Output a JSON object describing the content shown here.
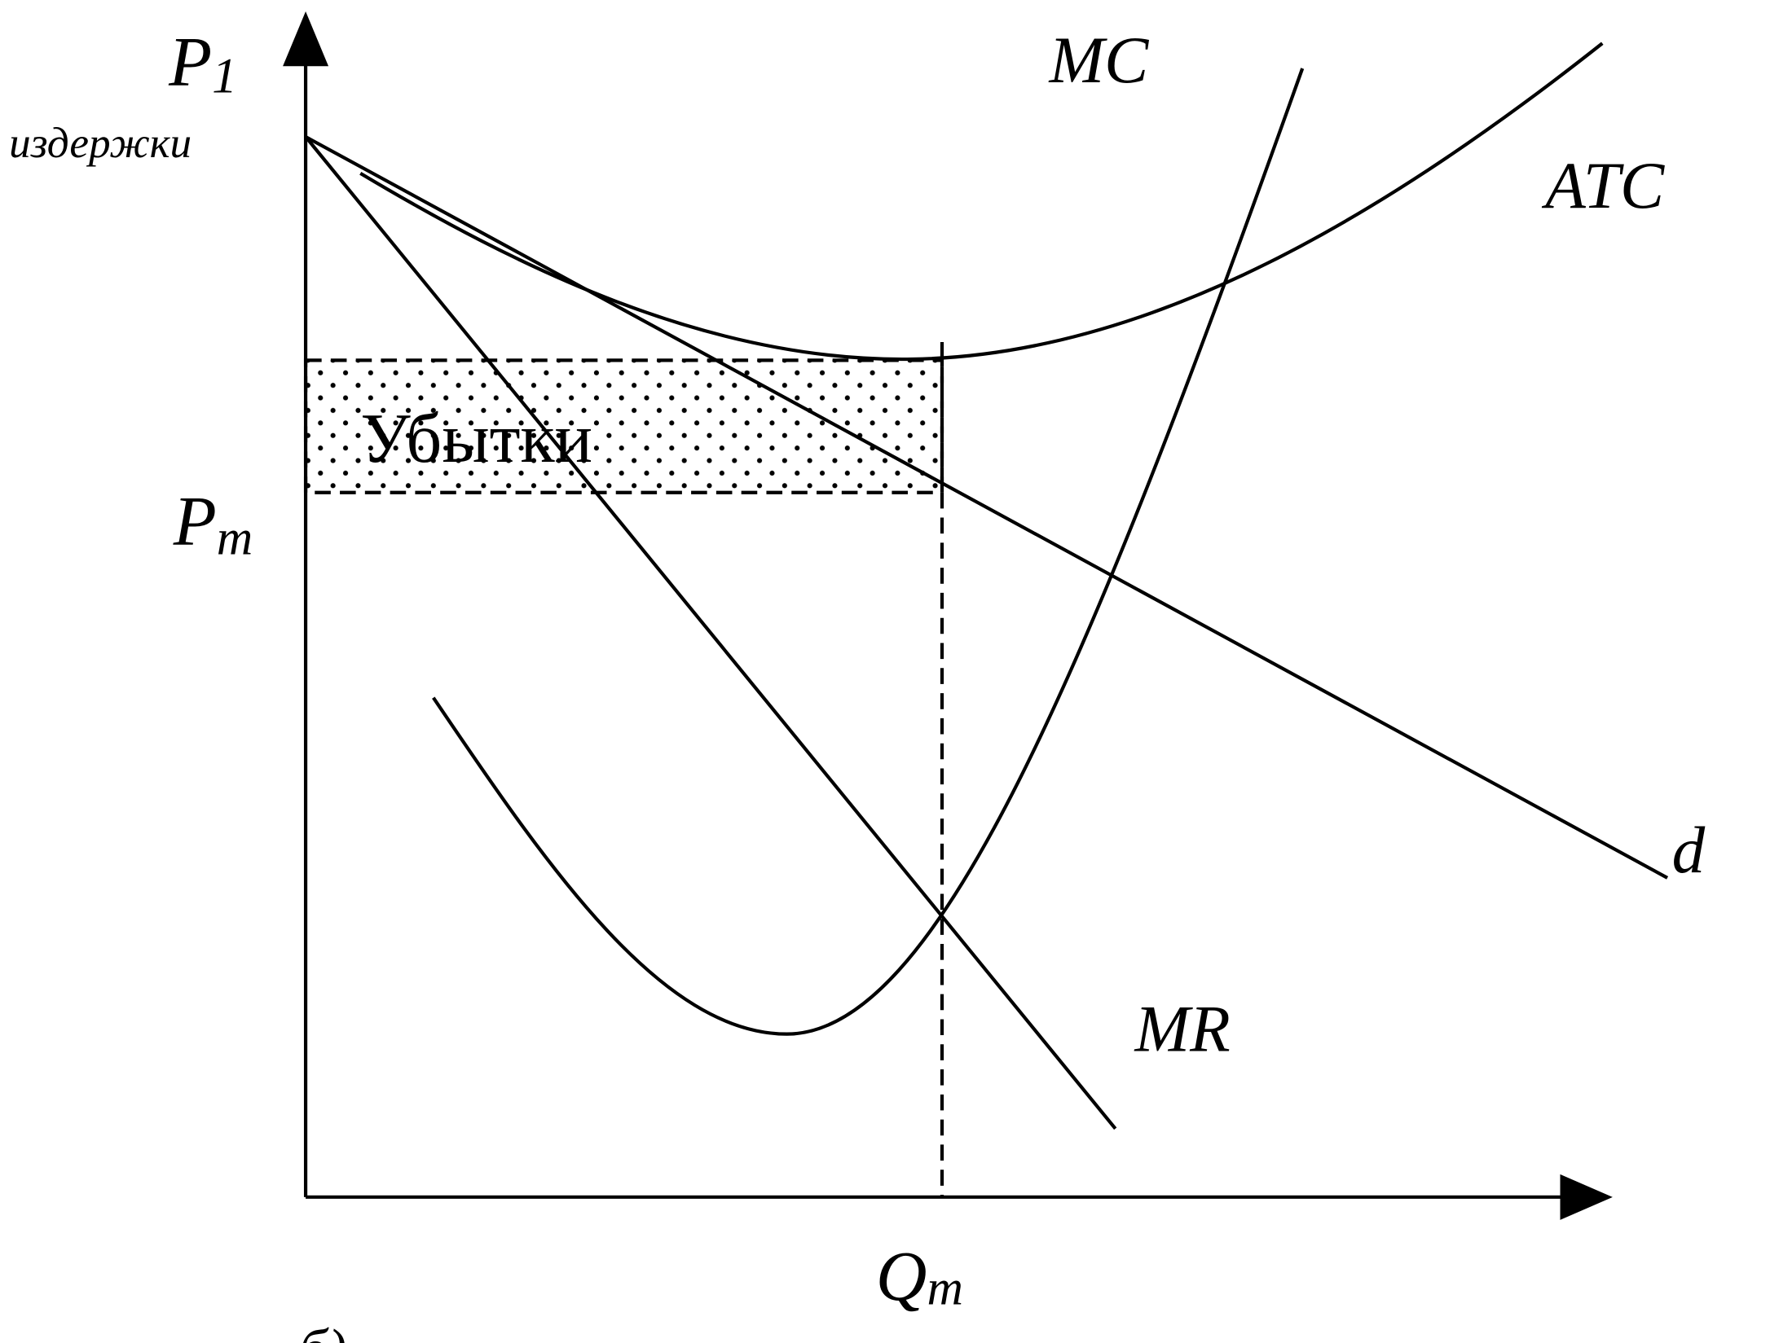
{
  "axis_labels": {
    "p1": {
      "letter": "P",
      "subscript": "1"
    },
    "y_caption": "издержки",
    "pm": {
      "letter": "P",
      "subscript": "m"
    },
    "qm": {
      "letter": "Q",
      "subscript": "m"
    }
  },
  "curves": {
    "mc": "MC",
    "atc": "ATC",
    "demand": "d",
    "mr": "MR"
  },
  "area_label": "Убытки",
  "figure_label": "б)"
}
